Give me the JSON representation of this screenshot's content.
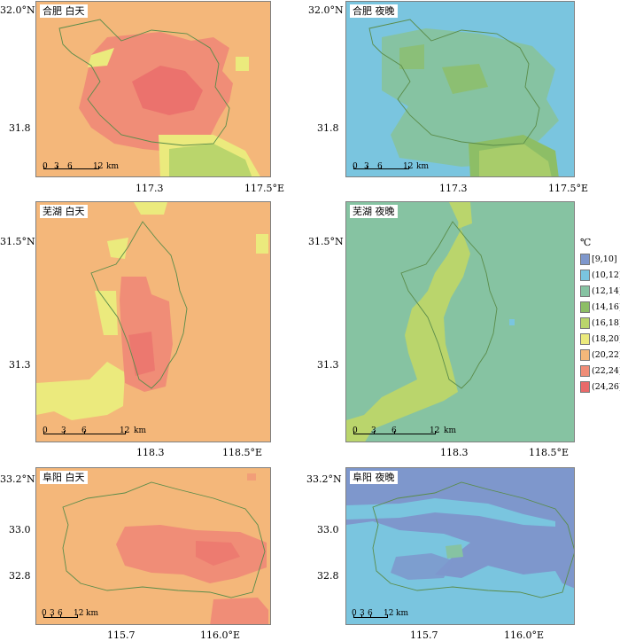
{
  "unit": "℃",
  "legend": [
    {
      "label": "[9,10]",
      "color": "#7E97CC"
    },
    {
      "label": "(10,12]",
      "color": "#7AC5DF"
    },
    {
      "label": "(12,14]",
      "color": "#86C3A2"
    },
    {
      "label": "(14,16]",
      "color": "#8DBE66"
    },
    {
      "label": "(16,18]",
      "color": "#BAD56C"
    },
    {
      "label": "(18,20]",
      "color": "#EBEA7D"
    },
    {
      "label": "(20,22]",
      "color": "#F4B77A"
    },
    {
      "label": "(22,24]",
      "color": "#F08D77"
    },
    {
      "label": "(24,26]",
      "color": "#E96A6A"
    }
  ],
  "panels": [
    {
      "city": "合肥",
      "period": "白天",
      "title": "合肥 白天",
      "yticks": [
        "32.0°N",
        "31.8"
      ],
      "xticks": [
        "117.3",
        "117.5°E"
      ]
    },
    {
      "city": "合肥",
      "period": "夜晚",
      "title": "合肥 夜晚",
      "yticks": [
        "32.0°N",
        "31.8"
      ],
      "xticks": [
        "117.3",
        "117.5°E"
      ]
    },
    {
      "city": "芜湖",
      "period": "白天",
      "title": "芜湖 白天",
      "yticks": [
        "31.5°N",
        "31.3"
      ],
      "xticks": [
        "118.3",
        "118.5°E"
      ]
    },
    {
      "city": "芜湖",
      "period": "夜晚",
      "title": "芜湖 夜晚",
      "yticks": [
        "31.5°N",
        "31.3"
      ],
      "xticks": [
        "118.3",
        "118.5°E"
      ]
    },
    {
      "city": "阜阳",
      "period": "白天",
      "title": "阜阳 白天",
      "yticks": [
        "33.2°N",
        "33.0",
        "32.8"
      ],
      "xticks": [
        "115.7",
        "116.0°E"
      ]
    },
    {
      "city": "阜阳",
      "period": "夜晚",
      "title": "阜阳 夜晚",
      "yticks": [
        "33.2°N",
        "33.0",
        "32.8"
      ],
      "xticks": [
        "115.7",
        "116.0°E"
      ]
    }
  ],
  "scalebar": {
    "labels": [
      "0",
      "3",
      "6",
      "12"
    ],
    "unit": "km"
  }
}
